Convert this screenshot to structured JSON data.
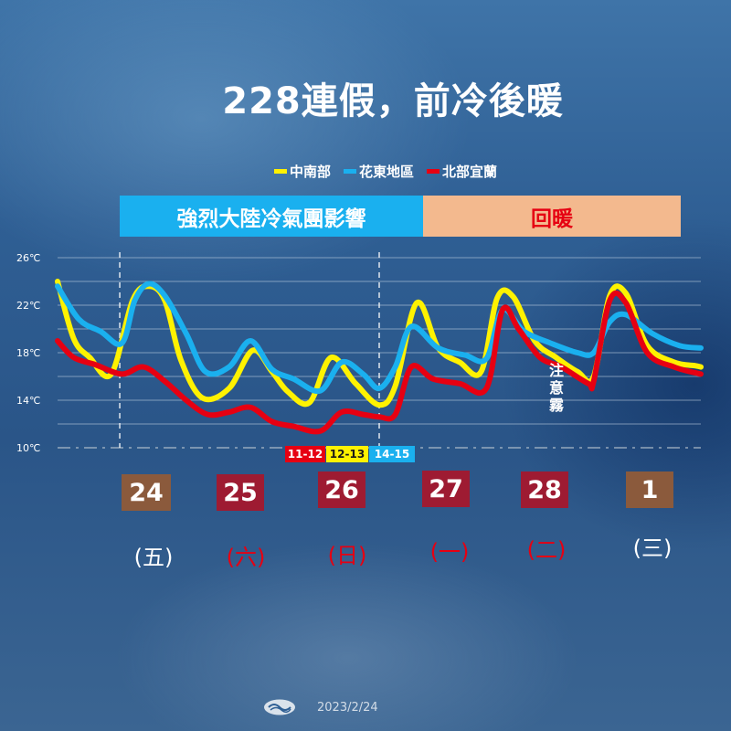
{
  "title": "228連假，前冷後暖",
  "legend": [
    {
      "label": "中南部",
      "color": "#fff200"
    },
    {
      "label": "花東地區",
      "color": "#1ab0ef"
    },
    {
      "label": "北部宜蘭",
      "color": "#e60012"
    }
  ],
  "phases": [
    {
      "label": "強烈大陸冷氣團影響",
      "bg": "#1ab0ef",
      "text_color": "#ffffff"
    },
    {
      "label": "回暖",
      "bg": "#f3b98e",
      "text_color": "#e60012"
    }
  ],
  "annotation": "注意霧",
  "min_temp_times": [
    {
      "label": "11-12",
      "bg": "#e60012",
      "text_color": "#ffffff"
    },
    {
      "label": "12-13",
      "bg": "#fff200",
      "text_color": "#1a1a1a"
    },
    {
      "label": "14-15",
      "bg": "#1ab0ef",
      "text_color": "#ffffff"
    }
  ],
  "days": [
    {
      "date": "24",
      "weekday": "(五)",
      "box_color": "#8b5a3c",
      "weekday_color": "#ffffff"
    },
    {
      "date": "25",
      "weekday": "(六)",
      "box_color": "#9e1b32",
      "weekday_color": "#e60012"
    },
    {
      "date": "26",
      "weekday": "(日)",
      "box_color": "#9e1b32",
      "weekday_color": "#e60012"
    },
    {
      "date": "27",
      "weekday": "(一)",
      "box_color": "#9e1b32",
      "weekday_color": "#e60012"
    },
    {
      "date": "28",
      "weekday": "(二)",
      "box_color": "#9e1b32",
      "weekday_color": "#e60012"
    },
    {
      "date": "1",
      "weekday": "(三)",
      "box_color": "#8b5a3c",
      "weekday_color": "#ffffff"
    }
  ],
  "footer": {
    "date": "2023/2/24",
    "logo_icon": "cwb-logo-icon"
  },
  "chart_data": {
    "type": "line",
    "ylim": [
      10,
      26
    ],
    "yticks": [
      {
        "value": 26,
        "label": "26℃"
      },
      {
        "value": 22,
        "label": "22℃"
      },
      {
        "value": 18,
        "label": "18℃"
      },
      {
        "value": 14,
        "label": "14℃"
      },
      {
        "value": 10,
        "label": "10℃"
      }
    ],
    "gridlines": [
      26,
      24,
      22,
      20,
      18,
      16,
      14,
      12,
      10
    ],
    "x_units": "days from 2/24 00:00",
    "xlim": [
      0,
      6
    ],
    "phase_dividers_x": [
      0.58,
      3.0
    ],
    "series": [
      {
        "name": "中南部",
        "color": "#fff200",
        "x": [
          0,
          0.15,
          0.3,
          0.5,
          0.7,
          0.85,
          1.0,
          1.15,
          1.35,
          1.6,
          1.82,
          2.0,
          2.15,
          2.35,
          2.55,
          2.78,
          3.0,
          3.15,
          3.35,
          3.55,
          3.75,
          3.95,
          4.1,
          4.25,
          4.45,
          4.65,
          4.85,
          5.0,
          5.15,
          5.3,
          5.5,
          5.75,
          5.95,
          6.0
        ],
        "y": [
          24.0,
          19.2,
          17.6,
          16.2,
          22.4,
          23.6,
          22.4,
          17.4,
          14.2,
          15.0,
          18.2,
          16.4,
          14.7,
          13.8,
          17.6,
          15.4,
          13.6,
          15.2,
          22.2,
          18.4,
          17.2,
          16.4,
          22.6,
          22.7,
          19.0,
          17.6,
          16.4,
          16.0,
          22.8,
          23.0,
          18.6,
          17.2,
          16.9,
          16.8
        ]
      },
      {
        "name": "花東地區",
        "color": "#1ab0ef",
        "x": [
          0,
          0.2,
          0.4,
          0.6,
          0.72,
          0.85,
          1.0,
          1.2,
          1.38,
          1.6,
          1.8,
          2.0,
          2.2,
          2.45,
          2.65,
          2.85,
          3.0,
          3.15,
          3.3,
          3.55,
          3.8,
          4.0,
          4.15,
          4.35,
          4.6,
          4.85,
          5.0,
          5.15,
          5.3,
          5.55,
          5.8,
          6.0
        ],
        "y": [
          23.6,
          20.8,
          19.8,
          18.8,
          22.4,
          23.8,
          22.8,
          19.6,
          16.4,
          16.8,
          19.0,
          16.6,
          15.8,
          14.8,
          17.2,
          16.2,
          15.0,
          16.8,
          20.2,
          18.4,
          17.8,
          17.5,
          21.6,
          19.8,
          18.8,
          18.0,
          18.0,
          20.6,
          21.2,
          19.6,
          18.6,
          18.4
        ]
      },
      {
        "name": "北部宜蘭",
        "color": "#e60012",
        "x": [
          0,
          0.15,
          0.35,
          0.6,
          0.8,
          1.0,
          1.2,
          1.4,
          1.6,
          1.8,
          2.0,
          2.2,
          2.45,
          2.65,
          2.85,
          3.0,
          3.15,
          3.3,
          3.5,
          3.75,
          4.0,
          4.15,
          4.3,
          4.5,
          4.7,
          4.95,
          5.0,
          5.15,
          5.3,
          5.5,
          5.75,
          6.0
        ],
        "y": [
          19.0,
          17.6,
          17.0,
          16.2,
          16.8,
          15.6,
          14.0,
          12.8,
          13.0,
          13.4,
          12.2,
          11.8,
          11.4,
          13.0,
          12.8,
          12.6,
          12.8,
          16.8,
          15.8,
          15.4,
          15.0,
          21.6,
          20.0,
          17.6,
          16.8,
          15.4,
          15.6,
          22.4,
          22.2,
          18.0,
          16.8,
          16.2
        ]
      }
    ]
  }
}
